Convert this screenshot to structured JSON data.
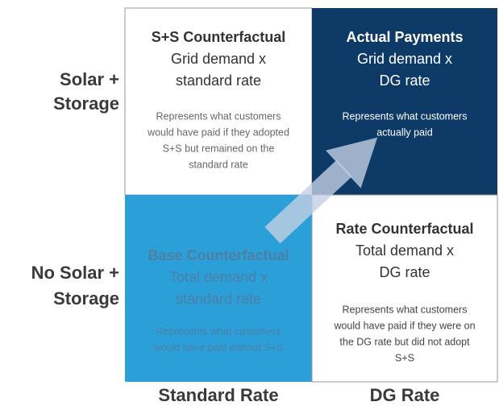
{
  "row_labels": [
    [
      "Solar +",
      "Storage"
    ],
    [
      "No Solar +",
      "Storage"
    ]
  ],
  "column_labels": [
    "Standard Rate",
    "DG Rate"
  ],
  "quadrants": [
    {
      "title": "S+S Counterfactual",
      "formula": [
        "Grid demand x",
        "standard rate"
      ],
      "description": [
        "Represents what customers",
        "would have paid if they adopted",
        "S+S but remained on the",
        "standard rate"
      ]
    },
    {
      "title": "Actual Payments",
      "formula": [
        "Grid demand x",
        "DG rate"
      ],
      "description": [
        "Represents what customers",
        "actually paid"
      ]
    },
    {
      "title": "Base Counterfactual",
      "formula": [
        "Total demand x",
        "standard rate"
      ],
      "description": [
        "Represents what customers",
        "would have paid without S+S"
      ]
    },
    {
      "title": "Rate Counterfactual",
      "formula": [
        "Total demand x",
        "DG rate"
      ],
      "description": [
        "Represents what customers",
        "would have paid if they were on",
        "the DG rate but did not adopt",
        "S+S"
      ]
    }
  ]
}
